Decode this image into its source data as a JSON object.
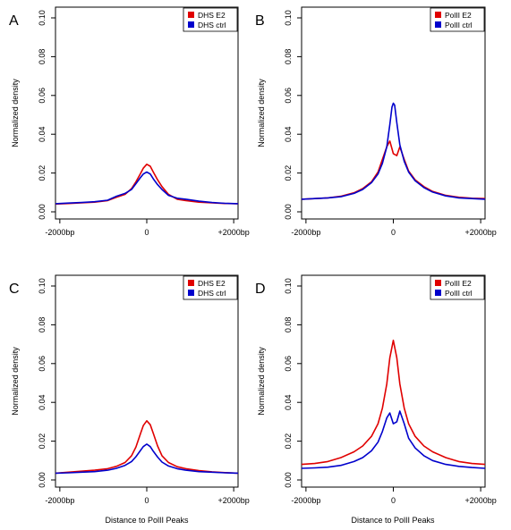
{
  "shared_xlabel": "Distance to PolII Peaks",
  "chart_data": [
    {
      "panel": "A",
      "type": "line",
      "ylabel": "Normalized density",
      "ylim": [
        0,
        0.1
      ],
      "yticks": [
        "0.00",
        "0.02",
        "0.04",
        "0.06",
        "0.08",
        "0.10"
      ],
      "xlim": [
        -2100,
        2100
      ],
      "xticks": [
        "-2000bp",
        "0",
        "+2000bp"
      ],
      "legend_position": "top-right",
      "series": [
        {
          "name": "DHS E2",
          "color": "#e00000",
          "x": [
            -2100,
            -1800,
            -1500,
            -1200,
            -900,
            -700,
            -500,
            -350,
            -250,
            -150,
            -80,
            0,
            80,
            150,
            250,
            350,
            500,
            700,
            900,
            1200,
            1500,
            1800,
            2100
          ],
          "y": [
            0.004,
            0.0043,
            0.0046,
            0.005,
            0.0058,
            0.0075,
            0.009,
            0.012,
            0.0155,
            0.0195,
            0.0225,
            0.0245,
            0.0235,
            0.0205,
            0.0165,
            0.013,
            0.009,
            0.0065,
            0.0058,
            0.005,
            0.0046,
            0.0043,
            0.0042
          ]
        },
        {
          "name": "DHS ctrl",
          "color": "#0000cc",
          "x": [
            -2100,
            -1800,
            -1500,
            -1200,
            -900,
            -700,
            -500,
            -350,
            -250,
            -150,
            -80,
            0,
            80,
            150,
            250,
            350,
            500,
            700,
            900,
            1200,
            1500,
            1800,
            2100
          ],
          "y": [
            0.0042,
            0.0045,
            0.0048,
            0.0052,
            0.006,
            0.008,
            0.0095,
            0.0115,
            0.0145,
            0.0175,
            0.0195,
            0.0205,
            0.0195,
            0.017,
            0.014,
            0.0115,
            0.0085,
            0.007,
            0.0065,
            0.0055,
            0.0048,
            0.0044,
            0.0042
          ]
        }
      ]
    },
    {
      "panel": "B",
      "type": "line",
      "ylabel": "Normalized density",
      "ylim": [
        0,
        0.1
      ],
      "yticks": [
        "0.00",
        "0.02",
        "0.04",
        "0.06",
        "0.08",
        "0.10"
      ],
      "xlim": [
        -2100,
        2100
      ],
      "xticks": [
        "-2000bp",
        "0",
        "+2000bp"
      ],
      "legend_position": "top-right",
      "series": [
        {
          "name": "PolII E2",
          "color": "#e00000",
          "x": [
            -2100,
            -1800,
            -1500,
            -1200,
            -900,
            -700,
            -500,
            -350,
            -250,
            -150,
            -80,
            0,
            80,
            150,
            250,
            350,
            500,
            700,
            900,
            1200,
            1500,
            1800,
            2100
          ],
          "y": [
            0.0065,
            0.0068,
            0.0072,
            0.008,
            0.0098,
            0.012,
            0.0155,
            0.0205,
            0.027,
            0.0335,
            0.0365,
            0.03,
            0.029,
            0.0335,
            0.027,
            0.021,
            0.0165,
            0.013,
            0.0105,
            0.0085,
            0.0075,
            0.007,
            0.0068
          ]
        },
        {
          "name": "PolII ctrl",
          "color": "#0000cc",
          "x": [
            -2100,
            -1800,
            -1500,
            -1200,
            -900,
            -700,
            -500,
            -350,
            -250,
            -150,
            -80,
            -30,
            0,
            30,
            80,
            150,
            250,
            350,
            500,
            700,
            900,
            1200,
            1500,
            1800,
            2100
          ],
          "y": [
            0.0065,
            0.0068,
            0.0072,
            0.0078,
            0.0095,
            0.0115,
            0.015,
            0.0195,
            0.025,
            0.0335,
            0.045,
            0.054,
            0.056,
            0.055,
            0.046,
            0.0345,
            0.026,
            0.0205,
            0.016,
            0.0125,
            0.0102,
            0.0082,
            0.0072,
            0.0068,
            0.0065
          ]
        }
      ]
    },
    {
      "panel": "C",
      "type": "line",
      "ylabel": "Normalized density",
      "ylim": [
        0,
        0.1
      ],
      "yticks": [
        "0.00",
        "0.02",
        "0.04",
        "0.06",
        "0.08",
        "0.10"
      ],
      "xlim": [
        -2100,
        2100
      ],
      "xticks": [
        "-2000bp",
        "0",
        "+2000bp"
      ],
      "legend_position": "top-right",
      "series": [
        {
          "name": "DHS E2",
          "color": "#e00000",
          "x": [
            -2100,
            -1800,
            -1500,
            -1200,
            -900,
            -700,
            -500,
            -350,
            -250,
            -150,
            -80,
            0,
            80,
            150,
            250,
            350,
            500,
            700,
            900,
            1200,
            1500,
            1800,
            2100
          ],
          "y": [
            0.0035,
            0.004,
            0.0045,
            0.005,
            0.0058,
            0.007,
            0.009,
            0.0125,
            0.017,
            0.0235,
            0.028,
            0.0305,
            0.0285,
            0.024,
            0.0175,
            0.0125,
            0.009,
            0.0068,
            0.0058,
            0.0048,
            0.0042,
            0.0038,
            0.0035
          ]
        },
        {
          "name": "DHS ctrl",
          "color": "#0000cc",
          "x": [
            -2100,
            -1800,
            -1500,
            -1200,
            -900,
            -700,
            -500,
            -350,
            -250,
            -150,
            -80,
            0,
            80,
            150,
            250,
            350,
            500,
            700,
            900,
            1200,
            1500,
            1800,
            2100
          ],
          "y": [
            0.0035,
            0.0037,
            0.004,
            0.0043,
            0.005,
            0.006,
            0.0075,
            0.0095,
            0.012,
            0.015,
            0.0172,
            0.0185,
            0.0172,
            0.0148,
            0.0118,
            0.0092,
            0.0072,
            0.0058,
            0.005,
            0.0043,
            0.004,
            0.0037,
            0.0035
          ]
        }
      ]
    },
    {
      "panel": "D",
      "type": "line",
      "ylabel": "Normalized density",
      "ylim": [
        0,
        0.1
      ],
      "yticks": [
        "0.00",
        "0.02",
        "0.04",
        "0.06",
        "0.08",
        "0.10"
      ],
      "xlim": [
        -2100,
        2100
      ],
      "xticks": [
        "-2000bp",
        "0",
        "+2000bp"
      ],
      "legend_position": "top-right",
      "series": [
        {
          "name": "PolII E2",
          "color": "#e00000",
          "x": [
            -2100,
            -1800,
            -1500,
            -1200,
            -900,
            -700,
            -500,
            -350,
            -250,
            -150,
            -80,
            0,
            80,
            150,
            250,
            350,
            500,
            700,
            900,
            1200,
            1500,
            1800,
            2100
          ],
          "y": [
            0.008,
            0.0085,
            0.0095,
            0.0115,
            0.0145,
            0.0175,
            0.0225,
            0.029,
            0.037,
            0.0495,
            0.063,
            0.072,
            0.063,
            0.0495,
            0.037,
            0.029,
            0.0225,
            0.0175,
            0.0145,
            0.0115,
            0.0095,
            0.0085,
            0.008
          ]
        },
        {
          "name": "PolII ctrl",
          "color": "#0000cc",
          "x": [
            -2100,
            -1800,
            -1500,
            -1200,
            -900,
            -700,
            -500,
            -350,
            -250,
            -150,
            -80,
            0,
            80,
            150,
            250,
            350,
            500,
            700,
            900,
            1200,
            1500,
            1800,
            2100
          ],
          "y": [
            0.006,
            0.0062,
            0.0066,
            0.0075,
            0.0095,
            0.0115,
            0.015,
            0.0195,
            0.025,
            0.032,
            0.0345,
            0.029,
            0.03,
            0.0355,
            0.029,
            0.0215,
            0.0165,
            0.0125,
            0.01,
            0.008,
            0.007,
            0.0064,
            0.006
          ]
        }
      ]
    }
  ]
}
